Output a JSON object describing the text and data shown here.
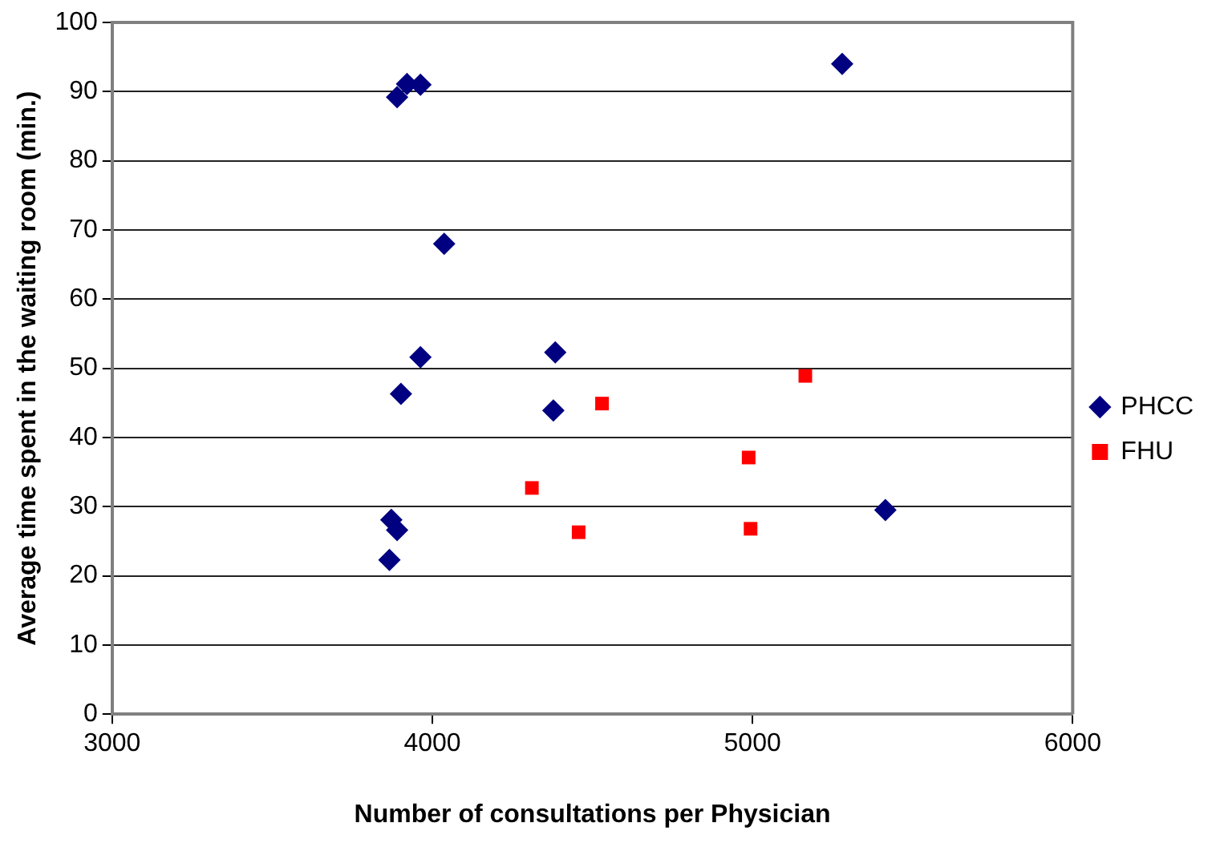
{
  "chart_data": {
    "type": "scatter",
    "xlabel": "Number of consultations per Physician",
    "ylabel": "Average time spent in the waiting room (min.)",
    "xlim": [
      3000,
      6000
    ],
    "xticks": [
      3000,
      4000,
      5000,
      6000
    ],
    "ylim": [
      0,
      100
    ],
    "yticks": [
      0,
      10,
      20,
      30,
      40,
      50,
      60,
      70,
      80,
      90,
      100
    ],
    "grid": "y",
    "legend": "right",
    "series": [
      {
        "name": "PHCC",
        "color": "#000080",
        "marker": "diamond",
        "x": [
          3890,
          3921,
          3963,
          5280,
          4037,
          3963,
          4384,
          3902,
          4378,
          3872,
          3890,
          3866,
          5415
        ],
        "values": [
          89.2,
          91.1,
          91,
          94,
          68,
          51.6,
          52.3,
          46.3,
          43.9,
          28.1,
          26.6,
          22.3,
          29.5
        ]
      },
      {
        "name": "FHU",
        "color": "#ff0000",
        "marker": "square",
        "x": [
          4530,
          5165,
          4988,
          4311,
          4457,
          4994
        ],
        "values": [
          44.9,
          48.9,
          37.1,
          32.7,
          26.3,
          26.8
        ]
      }
    ]
  }
}
